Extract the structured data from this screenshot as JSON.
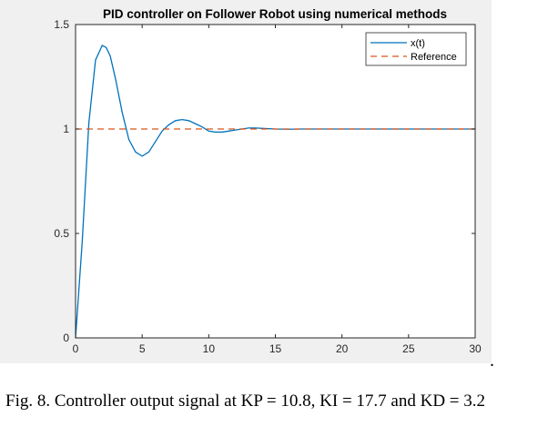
{
  "chart_data": {
    "type": "line",
    "title": "PID controller on Follower Robot using numerical methods",
    "xlabel": "",
    "ylabel": "",
    "xlim": [
      0,
      30
    ],
    "ylim": [
      0,
      1.5
    ],
    "x_ticks": [
      "0",
      "5",
      "10",
      "15",
      "20",
      "25",
      "30"
    ],
    "y_ticks": [
      "0",
      "0.5",
      "1",
      "1.5"
    ],
    "grid": false,
    "legend_position": "top-right",
    "series": [
      {
        "name": "x(t)",
        "color": "#0072BD",
        "style": "solid",
        "x": [
          0,
          0.5,
          1,
          1.5,
          2,
          2.3,
          2.6,
          3,
          3.5,
          4,
          4.5,
          5,
          5.5,
          6,
          6.5,
          7,
          7.5,
          8,
          8.5,
          9,
          9.5,
          10,
          10.5,
          11,
          11.5,
          12,
          12.5,
          13,
          13.5,
          14,
          15,
          16,
          17,
          18,
          20,
          25,
          30
        ],
        "y": [
          0,
          0.46,
          1.03,
          1.33,
          1.4,
          1.39,
          1.35,
          1.24,
          1.08,
          0.95,
          0.89,
          0.87,
          0.89,
          0.94,
          0.99,
          1.02,
          1.04,
          1.045,
          1.04,
          1.025,
          1.01,
          0.99,
          0.985,
          0.985,
          0.99,
          0.995,
          1.0,
          1.005,
          1.005,
          1.003,
          1.0,
          0.999,
          1.0,
          1.0,
          1.0,
          1.0,
          1.0
        ]
      },
      {
        "name": "Reference",
        "color": "#D95319",
        "style": "dashed",
        "x": [
          0,
          30
        ],
        "y": [
          1,
          1
        ]
      }
    ]
  },
  "caption": "Fig. 8.  Controller output signal at KP = 10.8, KI = 17.7 and KD = 3.2",
  "trailing_mark": "."
}
